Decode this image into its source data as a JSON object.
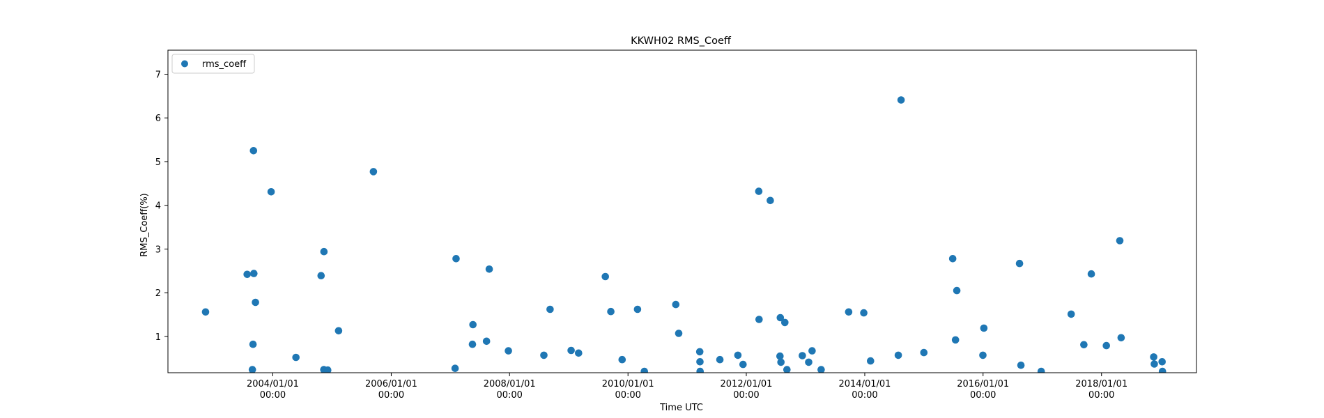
{
  "chart_data": {
    "type": "scatter",
    "title": "KKWH02 RMS_Coeff",
    "xlabel": "Time UTC",
    "ylabel": "RMS_Coeff(%)",
    "xlim": [
      "2002-03-25",
      "2019-08-10"
    ],
    "ylim": [
      0.17,
      7.55
    ],
    "yticks": [
      1,
      2,
      3,
      4,
      5,
      6,
      7
    ],
    "xticks": [
      {
        "date": "2004-01-01",
        "line1": "2004/01/01",
        "line2": "00:00"
      },
      {
        "date": "2006-01-01",
        "line1": "2006/01/01",
        "line2": "00:00"
      },
      {
        "date": "2008-01-01",
        "line1": "2008/01/01",
        "line2": "00:00"
      },
      {
        "date": "2010-01-01",
        "line1": "2010/01/01",
        "line2": "00:00"
      },
      {
        "date": "2012-01-01",
        "line1": "2012/01/01",
        "line2": "00:00"
      },
      {
        "date": "2014-01-01",
        "line1": "2014/01/01",
        "line2": "00:00"
      },
      {
        "date": "2016-01-01",
        "line1": "2016/01/01",
        "line2": "00:00"
      },
      {
        "date": "2018-01-01",
        "line1": "2018/01/01",
        "line2": "00:00"
      }
    ],
    "grid": false,
    "legend": "upper-left",
    "series": [
      {
        "name": "rms_coeff",
        "color": "#1f77b4",
        "points": [
          [
            "2002-11-12",
            1.56
          ],
          [
            "2003-07-27",
            2.42
          ],
          [
            "2003-08-28",
            0.24
          ],
          [
            "2003-09-01",
            0.82
          ],
          [
            "2003-09-04",
            5.25
          ],
          [
            "2003-09-06",
            2.44
          ],
          [
            "2003-09-16",
            1.78
          ],
          [
            "2003-12-22",
            4.31
          ],
          [
            "2004-05-23",
            0.52
          ],
          [
            "2004-10-25",
            2.39
          ],
          [
            "2004-11-11",
            0.24
          ],
          [
            "2004-11-12",
            2.94
          ],
          [
            "2004-12-05",
            0.23
          ],
          [
            "2005-02-10",
            1.13
          ],
          [
            "2005-09-13",
            4.77
          ],
          [
            "2007-01-30",
            0.27
          ],
          [
            "2007-02-05",
            2.78
          ],
          [
            "2007-05-17",
            0.82
          ],
          [
            "2007-05-20",
            1.27
          ],
          [
            "2007-08-12",
            0.89
          ],
          [
            "2007-08-29",
            2.54
          ],
          [
            "2007-12-25",
            0.67
          ],
          [
            "2008-07-31",
            0.57
          ],
          [
            "2008-09-07",
            1.62
          ],
          [
            "2009-01-15",
            0.68
          ],
          [
            "2009-03-02",
            0.62
          ],
          [
            "2009-08-14",
            2.37
          ],
          [
            "2009-09-17",
            1.57
          ],
          [
            "2009-11-26",
            0.47
          ],
          [
            "2010-03-01",
            1.62
          ],
          [
            "2010-04-12",
            0.2
          ],
          [
            "2010-10-23",
            1.73
          ],
          [
            "2010-11-10",
            1.07
          ],
          [
            "2011-03-20",
            0.65
          ],
          [
            "2011-03-21",
            0.42
          ],
          [
            "2011-03-22",
            0.2
          ],
          [
            "2011-07-22",
            0.47
          ],
          [
            "2011-11-10",
            0.57
          ],
          [
            "2011-12-12",
            0.36
          ],
          [
            "2012-03-18",
            4.32
          ],
          [
            "2012-03-20",
            1.39
          ],
          [
            "2012-05-28",
            4.11
          ],
          [
            "2012-07-27",
            0.55
          ],
          [
            "2012-07-29",
            1.43
          ],
          [
            "2012-08-02",
            0.41
          ],
          [
            "2012-08-26",
            1.32
          ],
          [
            "2012-09-08",
            0.24
          ],
          [
            "2012-12-12",
            0.56
          ],
          [
            "2013-01-20",
            0.41
          ],
          [
            "2013-02-10",
            0.67
          ],
          [
            "2013-04-07",
            0.24
          ],
          [
            "2013-09-24",
            1.56
          ],
          [
            "2013-12-26",
            1.54
          ],
          [
            "2014-02-06",
            0.44
          ],
          [
            "2014-07-27",
            0.57
          ],
          [
            "2014-08-13",
            6.41
          ],
          [
            "2015-01-01",
            0.63
          ],
          [
            "2015-06-28",
            2.78
          ],
          [
            "2015-07-15",
            0.92
          ],
          [
            "2015-07-23",
            2.05
          ],
          [
            "2015-12-31",
            0.57
          ],
          [
            "2016-01-06",
            1.19
          ],
          [
            "2016-08-13",
            2.67
          ],
          [
            "2016-08-22",
            0.34
          ],
          [
            "2016-12-25",
            0.2
          ],
          [
            "2017-06-28",
            1.51
          ],
          [
            "2017-09-14",
            0.81
          ],
          [
            "2017-10-30",
            2.43
          ],
          [
            "2018-01-31",
            0.79
          ],
          [
            "2018-04-24",
            3.19
          ],
          [
            "2018-05-02",
            0.97
          ],
          [
            "2018-11-19",
            0.53
          ],
          [
            "2018-11-23",
            0.37
          ],
          [
            "2019-01-10",
            0.42
          ],
          [
            "2019-01-12",
            0.2
          ]
        ]
      }
    ]
  }
}
